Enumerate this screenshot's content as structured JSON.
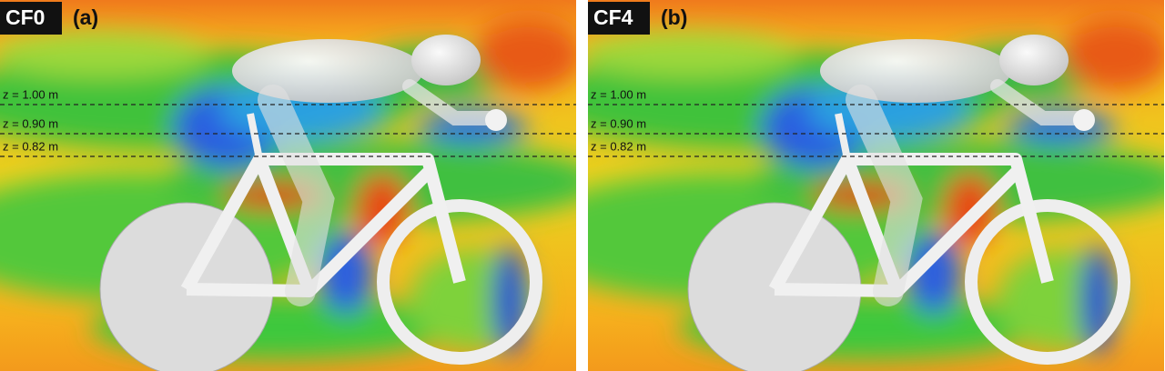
{
  "panels": [
    {
      "label": "CF0",
      "caption": "(a)",
      "lines": [
        "z = 1.00 m",
        "z = 0.90 m",
        "z = 0.82 m"
      ]
    },
    {
      "label": "CF4",
      "caption": "(b)",
      "lines": [
        "z = 1.00 m",
        "z = 0.90 m",
        "z = 0.82 m"
      ]
    }
  ]
}
